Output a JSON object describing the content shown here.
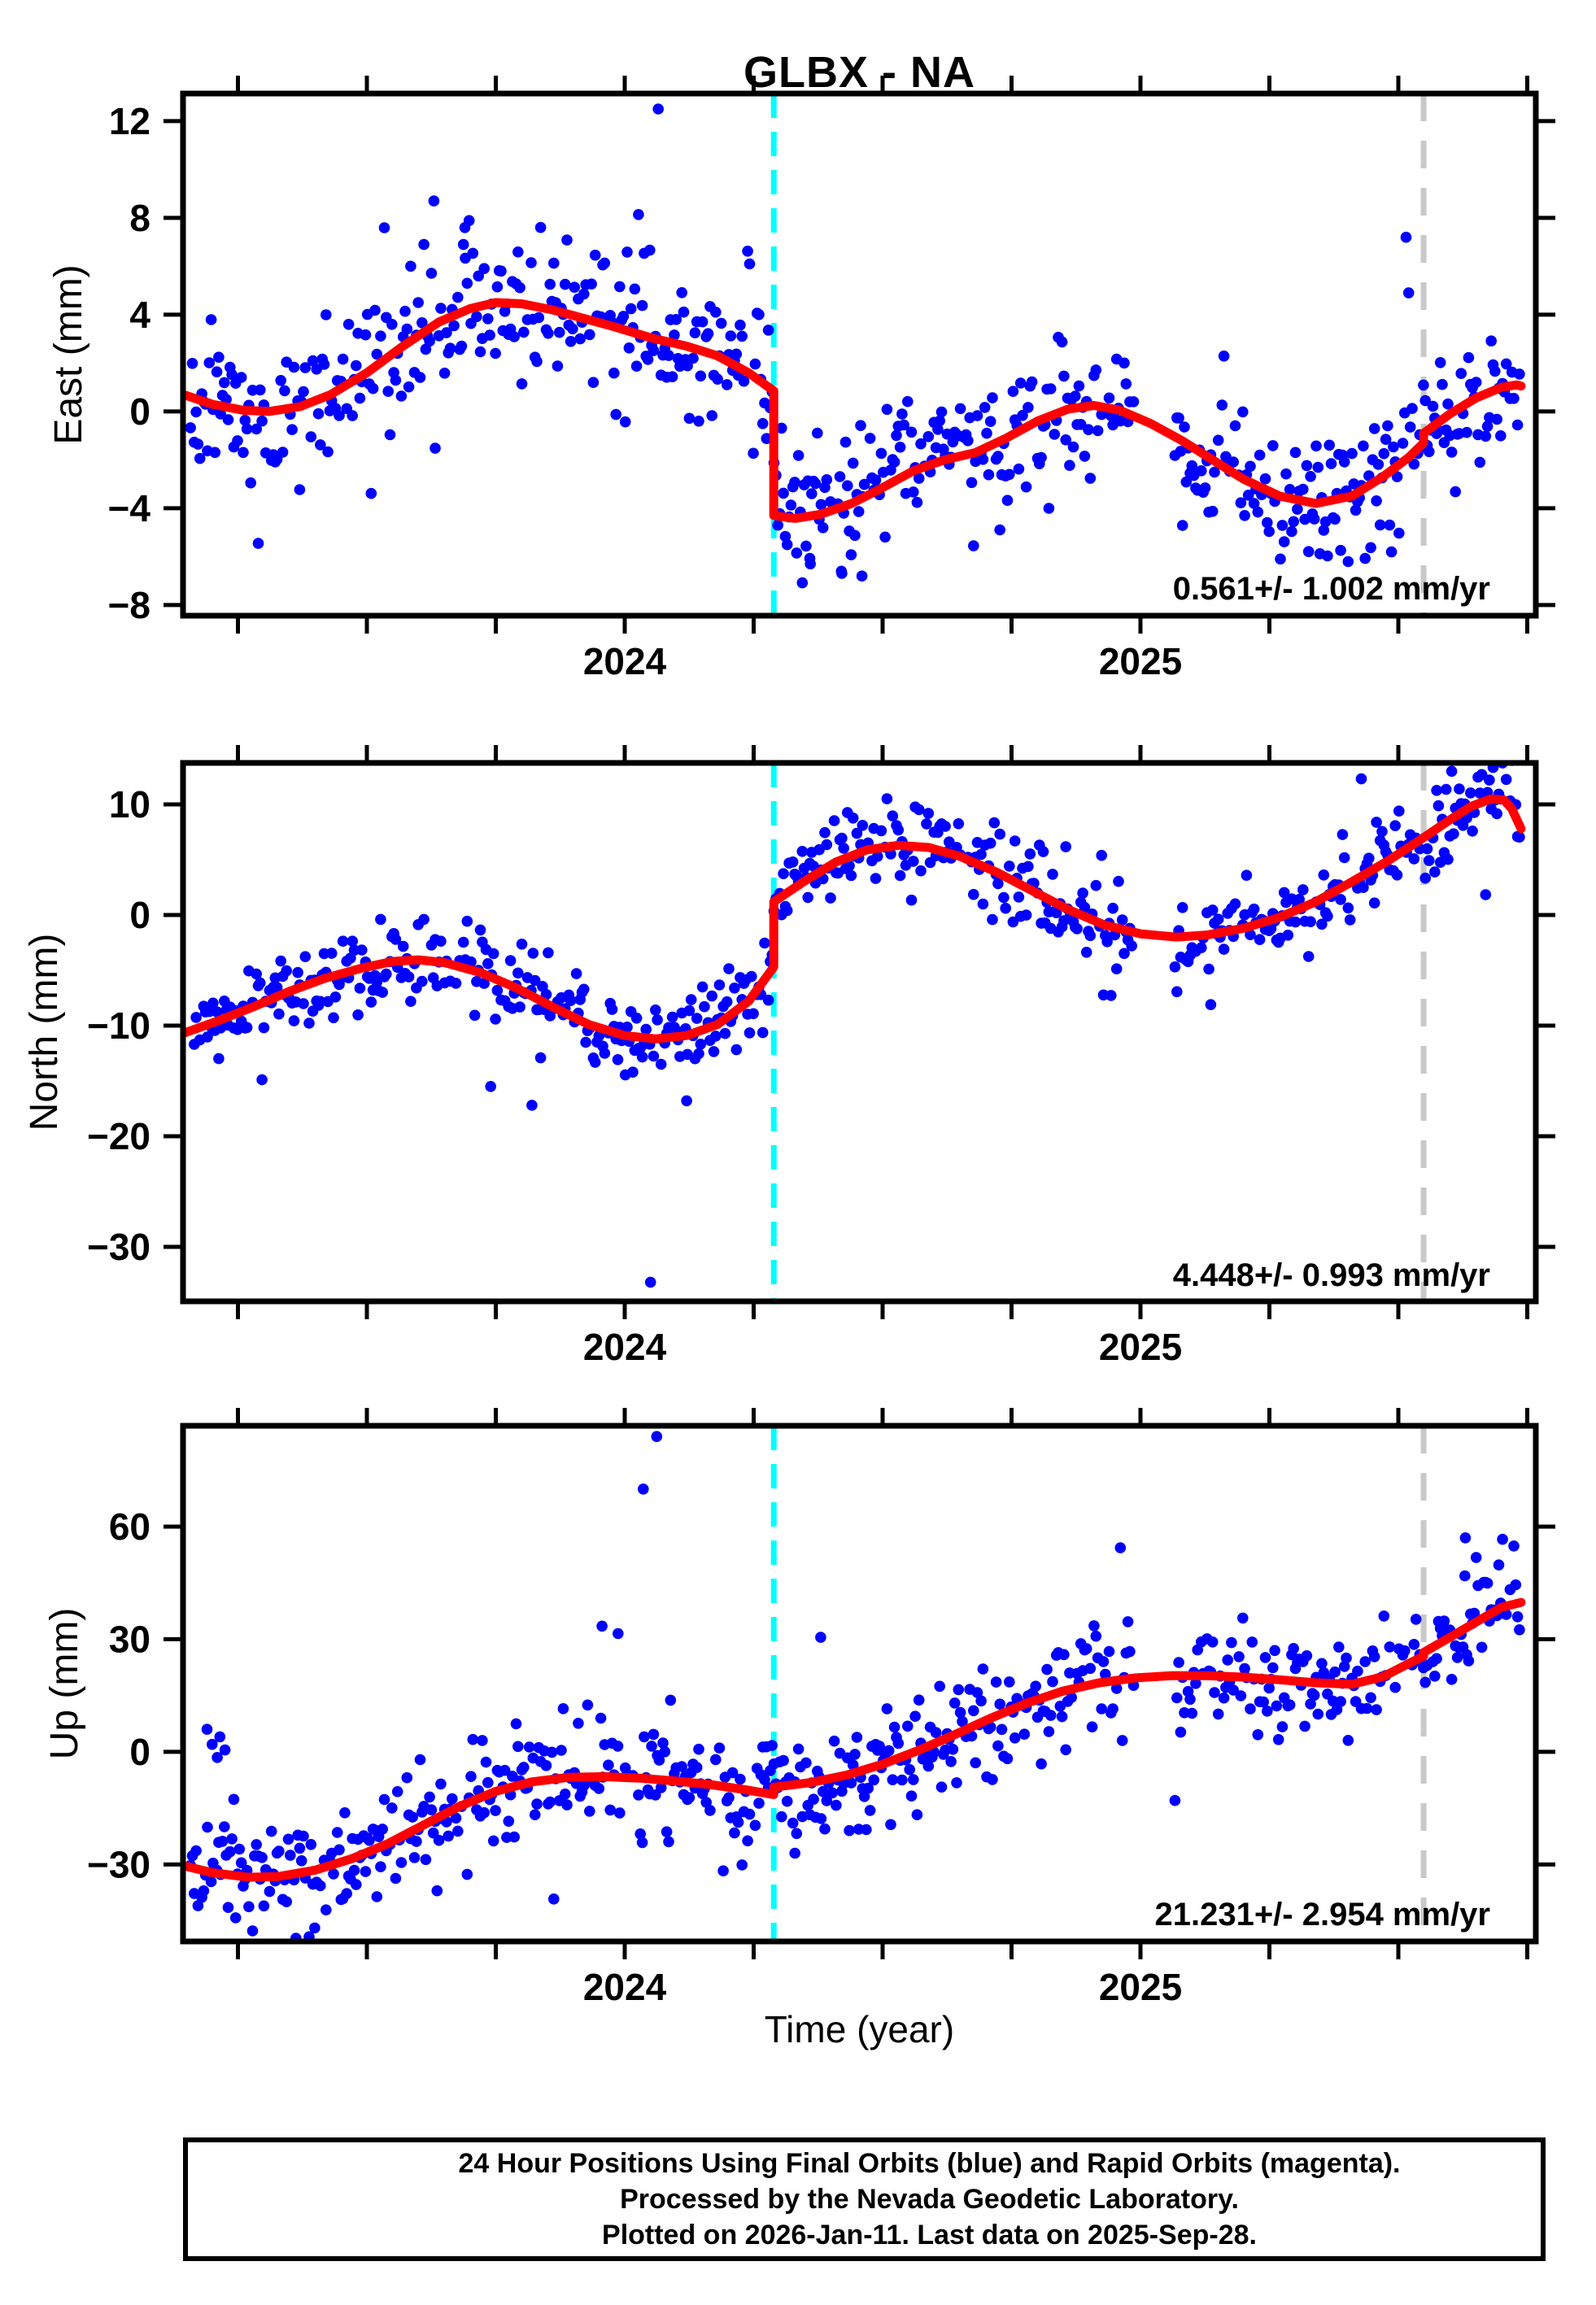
{
  "title": "GLBX - NA",
  "xlabel": "Time (year)",
  "caption": {
    "line1": "24 Hour Positions Using Final Orbits (blue) and Rapid Orbits (magenta).",
    "line2": "Processed by the Nevada Geodetic Laboratory.",
    "line3": "Plotted on 2026-Jan-11. Last data on 2025-Sep-28."
  },
  "colors": {
    "points_blue": "#0000ff",
    "model_red": "#ff0000",
    "event_cyan": "#00ffff",
    "event_gray": "#c9c9c9",
    "frame_black": "#000000",
    "background": "#ffffff"
  },
  "chart_data": {
    "type": "scatter",
    "title": "GLBX - NA",
    "xlabel": "Time (year)",
    "xlim": [
      2023.144,
      2025.767
    ],
    "x_minor_tick_step": 0.25,
    "x_major_labels": [
      {
        "t": 2024,
        "label": "2024"
      },
      {
        "t": 2025,
        "label": "2025"
      }
    ],
    "data_start": 2023.158,
    "data_end": 2025.738,
    "sample_step_years": 0.00365,
    "dropout_fraction": 0.13,
    "data_gaps": [
      [
        2024.988,
        2025.064
      ]
    ],
    "event_lines": [
      {
        "name": "cyan-event-line",
        "t": 2024.289,
        "color": "#00ffff",
        "style": "dashed"
      },
      {
        "name": "gray-event-line",
        "t": 2025.549,
        "color": "#c9c9c9",
        "style": "dashed"
      }
    ],
    "panels": [
      {
        "ylabel": "East (mm)",
        "ylim": [
          -8.44,
          13.14
        ],
        "yticks": [
          -8,
          -4,
          0,
          4,
          8,
          12
        ],
        "rate_label": "0.561+/- 1.002 mm/yr",
        "noise_sigma": 1.45,
        "seed": 11,
        "model_curve": [
          [
            2023.144,
            0.7
          ],
          [
            2023.2,
            0.3
          ],
          [
            2023.26,
            0.05
          ],
          [
            2023.31,
            0.0
          ],
          [
            2023.37,
            0.2
          ],
          [
            2023.43,
            0.7
          ],
          [
            2023.5,
            1.6
          ],
          [
            2023.57,
            2.7
          ],
          [
            2023.64,
            3.7
          ],
          [
            2023.7,
            4.25
          ],
          [
            2023.75,
            4.5
          ],
          [
            2023.8,
            4.45
          ],
          [
            2023.86,
            4.2
          ],
          [
            2023.92,
            3.85
          ],
          [
            2023.98,
            3.5
          ],
          [
            2024.05,
            3.05
          ],
          [
            2024.12,
            2.7
          ],
          [
            2024.18,
            2.3
          ],
          [
            2024.24,
            1.6
          ],
          [
            2024.289,
            0.85
          ],
          [
            2024.289,
            -4.3
          ],
          [
            2024.33,
            -4.42
          ],
          [
            2024.38,
            -4.25
          ],
          [
            2024.44,
            -3.8
          ],
          [
            2024.5,
            -3.15
          ],
          [
            2024.56,
            -2.45
          ],
          [
            2024.62,
            -2.0
          ],
          [
            2024.68,
            -1.7
          ],
          [
            2024.74,
            -1.1
          ],
          [
            2024.8,
            -0.4
          ],
          [
            2024.86,
            0.1
          ],
          [
            2024.91,
            0.25
          ],
          [
            2024.96,
            0.05
          ],
          [
            2025.02,
            -0.5
          ],
          [
            2025.08,
            -1.2
          ],
          [
            2025.14,
            -2.0
          ],
          [
            2025.2,
            -2.8
          ],
          [
            2025.27,
            -3.5
          ],
          [
            2025.34,
            -3.8
          ],
          [
            2025.41,
            -3.5
          ],
          [
            2025.47,
            -2.7
          ],
          [
            2025.52,
            -1.9
          ],
          [
            2025.549,
            -1.3
          ],
          [
            2025.549,
            -0.9
          ],
          [
            2025.6,
            -0.1
          ],
          [
            2025.65,
            0.55
          ],
          [
            2025.7,
            1.0
          ],
          [
            2025.73,
            1.1
          ],
          [
            2025.738,
            1.05
          ]
        ],
        "outliers": [
          [
            2024.065,
            12.5
          ],
          [
            2025.515,
            7.2
          ],
          [
            2025.52,
            4.9
          ],
          [
            2024.42,
            -6.6
          ],
          [
            2024.36,
            -6.3
          ],
          [
            2023.63,
            8.7
          ],
          [
            2023.69,
            7.6
          ],
          [
            2024.46,
            -6.8
          ]
        ]
      },
      {
        "ylabel": "North (mm)",
        "ylim": [
          -34.93,
          13.75
        ],
        "yticks": [
          -30,
          -20,
          -10,
          0,
          10
        ],
        "rate_label": "4.448+/- 0.993 mm/yr",
        "noise_sigma": 1.95,
        "seed": 23,
        "model_curve": [
          [
            2023.144,
            -10.7
          ],
          [
            2023.21,
            -9.6
          ],
          [
            2023.28,
            -8.3
          ],
          [
            2023.35,
            -6.9
          ],
          [
            2023.42,
            -5.7
          ],
          [
            2023.49,
            -4.8
          ],
          [
            2023.55,
            -4.2
          ],
          [
            2023.6,
            -4.05
          ],
          [
            2023.65,
            -4.3
          ],
          [
            2023.72,
            -5.2
          ],
          [
            2023.79,
            -6.6
          ],
          [
            2023.86,
            -8.3
          ],
          [
            2023.93,
            -9.9
          ],
          [
            2024.0,
            -10.9
          ],
          [
            2024.06,
            -11.2
          ],
          [
            2024.12,
            -10.9
          ],
          [
            2024.18,
            -9.9
          ],
          [
            2024.24,
            -7.8
          ],
          [
            2024.289,
            -4.7
          ],
          [
            2024.289,
            1.2
          ],
          [
            2024.35,
            3.1
          ],
          [
            2024.41,
            4.8
          ],
          [
            2024.47,
            5.9
          ],
          [
            2024.53,
            6.3
          ],
          [
            2024.59,
            6.1
          ],
          [
            2024.65,
            5.3
          ],
          [
            2024.72,
            3.9
          ],
          [
            2024.79,
            2.2
          ],
          [
            2024.86,
            0.5
          ],
          [
            2024.93,
            -0.9
          ],
          [
            2025.0,
            -1.7
          ],
          [
            2025.07,
            -2.0
          ],
          [
            2025.13,
            -1.8
          ],
          [
            2025.2,
            -1.2
          ],
          [
            2025.27,
            -0.2
          ],
          [
            2025.34,
            1.2
          ],
          [
            2025.41,
            3.0
          ],
          [
            2025.48,
            4.9
          ],
          [
            2025.549,
            7.0
          ],
          [
            2025.6,
            8.6
          ],
          [
            2025.64,
            9.8
          ],
          [
            2025.68,
            10.5
          ],
          [
            2025.705,
            10.4
          ],
          [
            2025.72,
            9.6
          ],
          [
            2025.738,
            7.8
          ]
        ],
        "outliers": [
          [
            2024.05,
            -33.2
          ],
          [
            2023.82,
            -17.2
          ],
          [
            2024.12,
            -16.8
          ],
          [
            2023.74,
            -15.5
          ]
        ]
      },
      {
        "ylabel": "Up (mm)",
        "ylim": [
          -50.5,
          86.85
        ],
        "yticks": [
          -30,
          0,
          30,
          60
        ],
        "rate_label": "21.231+/- 2.954 mm/yr",
        "noise_sigma": 7.0,
        "seed": 37,
        "model_curve": [
          [
            2023.144,
            -30.3
          ],
          [
            2023.2,
            -32.2
          ],
          [
            2023.27,
            -33.4
          ],
          [
            2023.33,
            -33.2
          ],
          [
            2023.4,
            -31.5
          ],
          [
            2023.47,
            -28.5
          ],
          [
            2023.54,
            -24.5
          ],
          [
            2023.61,
            -19.5
          ],
          [
            2023.68,
            -14.5
          ],
          [
            2023.75,
            -10.5
          ],
          [
            2023.82,
            -8.0
          ],
          [
            2023.89,
            -6.8
          ],
          [
            2023.96,
            -6.6
          ],
          [
            2024.03,
            -7.0
          ],
          [
            2024.1,
            -7.8
          ],
          [
            2024.17,
            -8.8
          ],
          [
            2024.23,
            -10.0
          ],
          [
            2024.289,
            -11.4
          ],
          [
            2024.289,
            -9.4
          ],
          [
            2024.36,
            -8.2
          ],
          [
            2024.43,
            -6.2
          ],
          [
            2024.5,
            -3.3
          ],
          [
            2024.57,
            0.4
          ],
          [
            2024.64,
            4.6
          ],
          [
            2024.71,
            9.0
          ],
          [
            2024.78,
            13.0
          ],
          [
            2024.85,
            16.2
          ],
          [
            2024.92,
            18.4
          ],
          [
            2024.99,
            19.7
          ],
          [
            2025.06,
            20.3
          ],
          [
            2025.13,
            20.3
          ],
          [
            2025.2,
            19.9
          ],
          [
            2025.27,
            19.2
          ],
          [
            2025.34,
            18.4
          ],
          [
            2025.41,
            18.0
          ],
          [
            2025.47,
            20.0
          ],
          [
            2025.52,
            23.5
          ],
          [
            2025.549,
            25.5
          ],
          [
            2025.549,
            26.5
          ],
          [
            2025.6,
            30.5
          ],
          [
            2025.65,
            34.5
          ],
          [
            2025.7,
            38.5
          ],
          [
            2025.738,
            39.8
          ]
        ],
        "outliers": [
          [
            2024.036,
            70
          ],
          [
            2024.062,
            84
          ],
          [
            2023.956,
            33.5
          ],
          [
            2023.987,
            31.5
          ],
          [
            2023.19,
            6.0
          ],
          [
            2023.2,
            2.0
          ],
          [
            2023.21,
            -1.5
          ],
          [
            2023.215,
            4.0
          ],
          [
            2023.225,
            0.5
          ],
          [
            2024.38,
            30.5
          ],
          [
            2024.33,
            -27.0
          ],
          [
            2025.63,
            57.0
          ]
        ]
      }
    ]
  }
}
